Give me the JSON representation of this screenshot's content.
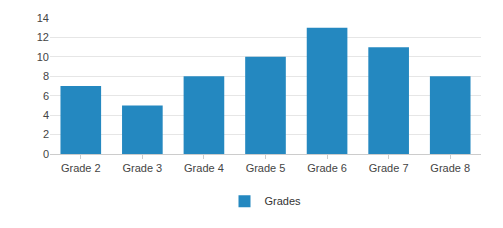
{
  "chart_data": {
    "type": "bar",
    "categories": [
      "Grade 2",
      "Grade 3",
      "Grade 4",
      "Grade 5",
      "Grade 6",
      "Grade 7",
      "Grade 8"
    ],
    "series": [
      {
        "name": "Grades",
        "color": "#2488c0",
        "values": [
          7,
          5,
          8,
          10,
          13,
          11,
          8
        ]
      }
    ],
    "ylim": [
      0,
      14
    ],
    "yticks": [
      0,
      2,
      4,
      6,
      8,
      10,
      12,
      14
    ],
    "grid": true,
    "legend": "bottom"
  }
}
